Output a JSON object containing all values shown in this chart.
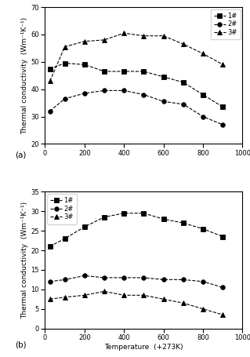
{
  "temp_a": [
    25,
    100,
    200,
    300,
    400,
    500,
    600,
    700,
    800,
    900
  ],
  "series_a_1": [
    47.5,
    49.5,
    49.0,
    46.5,
    46.5,
    46.5,
    44.5,
    42.5,
    38.0,
    33.5
  ],
  "series_a_2": [
    32.0,
    36.5,
    38.5,
    39.5,
    39.5,
    38.0,
    35.5,
    34.5,
    30.0,
    27.0
  ],
  "series_a_3": [
    43.0,
    55.5,
    57.5,
    58.0,
    60.5,
    59.5,
    59.5,
    56.5,
    53.0,
    49.0
  ],
  "ylim_a": [
    20,
    70
  ],
  "yticks_a": [
    20,
    30,
    40,
    50,
    60,
    70
  ],
  "temp_b": [
    25,
    100,
    200,
    300,
    400,
    500,
    600,
    700,
    800,
    900
  ],
  "series_b_1": [
    21.0,
    23.0,
    26.0,
    28.5,
    29.5,
    29.5,
    28.0,
    27.0,
    25.5,
    23.5
  ],
  "series_b_2": [
    12.0,
    12.5,
    13.5,
    13.0,
    13.0,
    13.0,
    12.5,
    12.5,
    12.0,
    10.5
  ],
  "series_b_3": [
    7.5,
    8.0,
    8.5,
    9.5,
    8.5,
    8.5,
    7.5,
    6.5,
    5.0,
    3.5
  ],
  "ylim_b": [
    0,
    35
  ],
  "yticks_b": [
    0,
    5,
    10,
    15,
    20,
    25,
    30,
    35
  ],
  "xlabel": "Temperature  (+273K)",
  "ylabel_a": "Thermal conductivity  (Wm⁻¹K⁻¹)",
  "ylabel_b": "Thermal conductivity  (Wm⁻¹K⁻¹)",
  "xlim": [
    0,
    1000
  ],
  "xticks": [
    0,
    200,
    400,
    600,
    800,
    1000
  ],
  "labels": [
    "1#",
    "2#",
    "3#"
  ],
  "markers": [
    "s",
    "o",
    "^"
  ],
  "linestyle": "--",
  "color": "black",
  "markersize": 4,
  "linewidth": 0.8,
  "markerfacecolor": "black",
  "legend_fontsize": 6,
  "axis_fontsize": 6.5,
  "tick_fontsize": 6,
  "label_a": "(a)",
  "label_b": "(b)"
}
